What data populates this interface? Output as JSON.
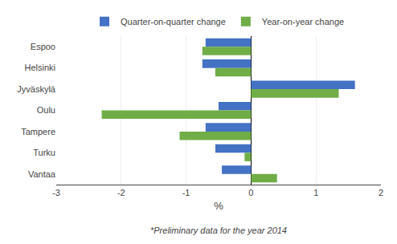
{
  "chart_data": {
    "type": "bar",
    "orientation": "horizontal",
    "categories": [
      "Espoo",
      "Helsinki",
      "Jyväskylä",
      "Oulu",
      "Tampere",
      "Turku",
      "Vantaa"
    ],
    "series": [
      {
        "name": "Quarter-on-quarter change",
        "color": "#4472C4",
        "values": [
          -0.7,
          -0.75,
          1.6,
          -0.5,
          -0.7,
          -0.55,
          -0.45
        ]
      },
      {
        "name": "Year-on-year change",
        "color": "#70AD47",
        "values": [
          -0.75,
          -0.55,
          1.35,
          -2.3,
          -1.1,
          -0.1,
          0.4
        ]
      }
    ],
    "xlabel": "%",
    "xlim": [
      -3,
      2
    ],
    "xticks": [
      -3,
      -2,
      -1,
      0,
      1,
      2
    ],
    "grid": true,
    "legend": "top",
    "annotations": [
      "*Preliminary data for the year 2014"
    ]
  }
}
